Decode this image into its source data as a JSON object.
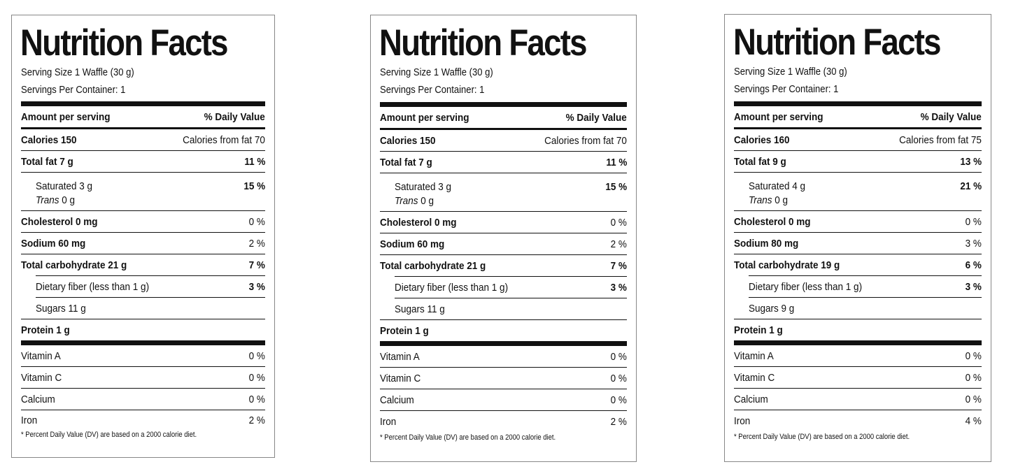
{
  "labels": [
    {
      "title": "Nutrition Facts",
      "serving_size": "Serving Size 1 Waffle (30 g)",
      "servings_per_container": "Servings Per Container: 1",
      "amount_header": "Amount per serving",
      "dv_header": "% Daily Value",
      "calories": "Calories 150",
      "calories_from_fat": "Calories from fat  70",
      "total_fat": "Total fat 7 g",
      "total_fat_dv": "11 %",
      "saturated": "Saturated  3 g",
      "saturated_dv": "15 %",
      "trans_label": "Trans",
      "trans_value": "0 g",
      "cholesterol": "Cholesterol 0 mg",
      "cholesterol_dv": "0 %",
      "sodium": "Sodium 60 mg",
      "sodium_dv": "2 %",
      "carbohydrate": "Total carbohydrate 21 g",
      "carbohydrate_dv": "7 %",
      "fiber": "Dietary fiber (less than 1 g)",
      "fiber_dv": "3 %",
      "sugars": "Sugars 11 g",
      "protein": "Protein 1 g",
      "vitamin_a": "Vitamin A",
      "vitamin_a_dv": "0 %",
      "vitamin_c": "Vitamin C",
      "vitamin_c_dv": "0 %",
      "calcium": "Calcium",
      "calcium_dv": "0 %",
      "iron": "Iron",
      "iron_dv": "2 %",
      "footnote": "* Percent Daily Value (DV) are based on a 2000 calorie diet."
    },
    {
      "title": "Nutrition Facts",
      "serving_size": "Serving Size 1 Waffle (30 g)",
      "servings_per_container": "Servings Per Container: 1",
      "amount_header": "Amount per serving",
      "dv_header": "% Daily Value",
      "calories": "Calories 150",
      "calories_from_fat": "Calories from fat  70",
      "total_fat": "Total fat 7 g",
      "total_fat_dv": "11 %",
      "saturated": "Saturated  3 g",
      "saturated_dv": "15 %",
      "trans_label": "Trans",
      "trans_value": "0 g",
      "cholesterol": "Cholesterol 0 mg",
      "cholesterol_dv": "0 %",
      "sodium": "Sodium 60 mg",
      "sodium_dv": "2 %",
      "carbohydrate": "Total carbohydrate 21 g",
      "carbohydrate_dv": "7 %",
      "fiber": "Dietary fiber (less than 1 g)",
      "fiber_dv": "3 %",
      "sugars": "Sugars 11 g",
      "protein": "Protein 1 g",
      "vitamin_a": "Vitamin A",
      "vitamin_a_dv": "0 %",
      "vitamin_c": "Vitamin C",
      "vitamin_c_dv": "0 %",
      "calcium": "Calcium",
      "calcium_dv": "0 %",
      "iron": "Iron",
      "iron_dv": "2 %",
      "footnote": "* Percent Daily Value (DV) are based on a 2000 calorie diet."
    },
    {
      "title": "Nutrition Facts",
      "serving_size": "Serving Size 1 Waffle (30 g)",
      "servings_per_container": "Servings Per Container: 1",
      "amount_header": "Amount per serving",
      "dv_header": "% Daily Value",
      "calories": "Calories 160",
      "calories_from_fat": "Calories from fat  75",
      "total_fat": "Total fat 9 g",
      "total_fat_dv": "13 %",
      "saturated": "Saturated  4 g",
      "saturated_dv": "21 %",
      "trans_label": "Trans",
      "trans_value": "0 g",
      "cholesterol": "Cholesterol 0 mg",
      "cholesterol_dv": "0 %",
      "sodium": "Sodium 80 mg",
      "sodium_dv": "3 %",
      "carbohydrate": "Total carbohydrate 19 g",
      "carbohydrate_dv": "6 %",
      "fiber": "Dietary fiber (less than 1 g)",
      "fiber_dv": "3 %",
      "sugars": "Sugars 9 g",
      "protein": "Protein 1 g",
      "vitamin_a": "Vitamin A",
      "vitamin_a_dv": "0 %",
      "vitamin_c": "Vitamin C",
      "vitamin_c_dv": "0 %",
      "calcium": "Calcium",
      "calcium_dv": "0 %",
      "iron": "Iron",
      "iron_dv": "4 %",
      "footnote": "* Percent Daily Value (DV) are based on a 2000 calorie diet."
    }
  ]
}
